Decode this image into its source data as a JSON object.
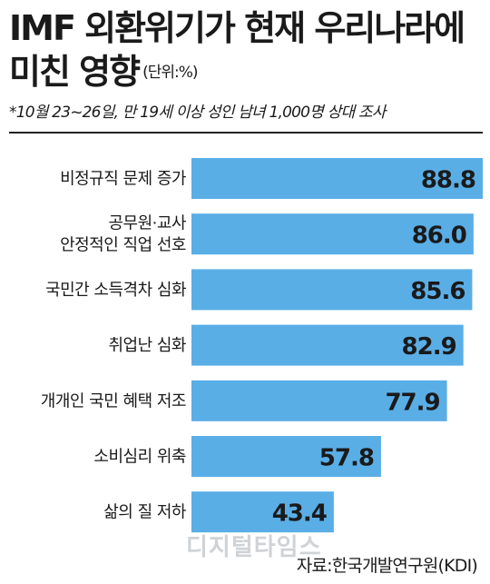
{
  "title_line1": "IMF 외환위기가 현재 우리나라에",
  "title_line2": "미친 영향",
  "unit": "(단위:%)",
  "subtitle": "*10월 23~26일, 만 19세 이상 성인 남녀 1,000명 상대 조사",
  "source": "자료:한국개발연구원(KDI)",
  "watermark": "디지털타임스",
  "colors": {
    "bar": "#5aaee6",
    "text": "#1a1a1a",
    "label_bg": "#ffffff"
  },
  "chart_data": {
    "type": "bar",
    "orientation": "horizontal",
    "categories": [
      [
        "비정규직 문제 증가"
      ],
      [
        "공무원·교사",
        "안정적인 직업 선호"
      ],
      [
        "국민간 소득격차 심화"
      ],
      [
        "취업난 심화"
      ],
      [
        "개개인 국민 혜택 저조"
      ],
      [
        "소비심리 위축"
      ],
      [
        "삶의 질 저하"
      ]
    ],
    "values": [
      88.8,
      86.0,
      85.6,
      82.9,
      77.9,
      57.8,
      43.4
    ],
    "value_labels": [
      "88.8",
      "86.0",
      "85.6",
      "82.9",
      "77.9",
      "57.8",
      "43.4"
    ],
    "xlim": [
      0,
      88.8
    ],
    "grid": false,
    "legend": "none"
  }
}
